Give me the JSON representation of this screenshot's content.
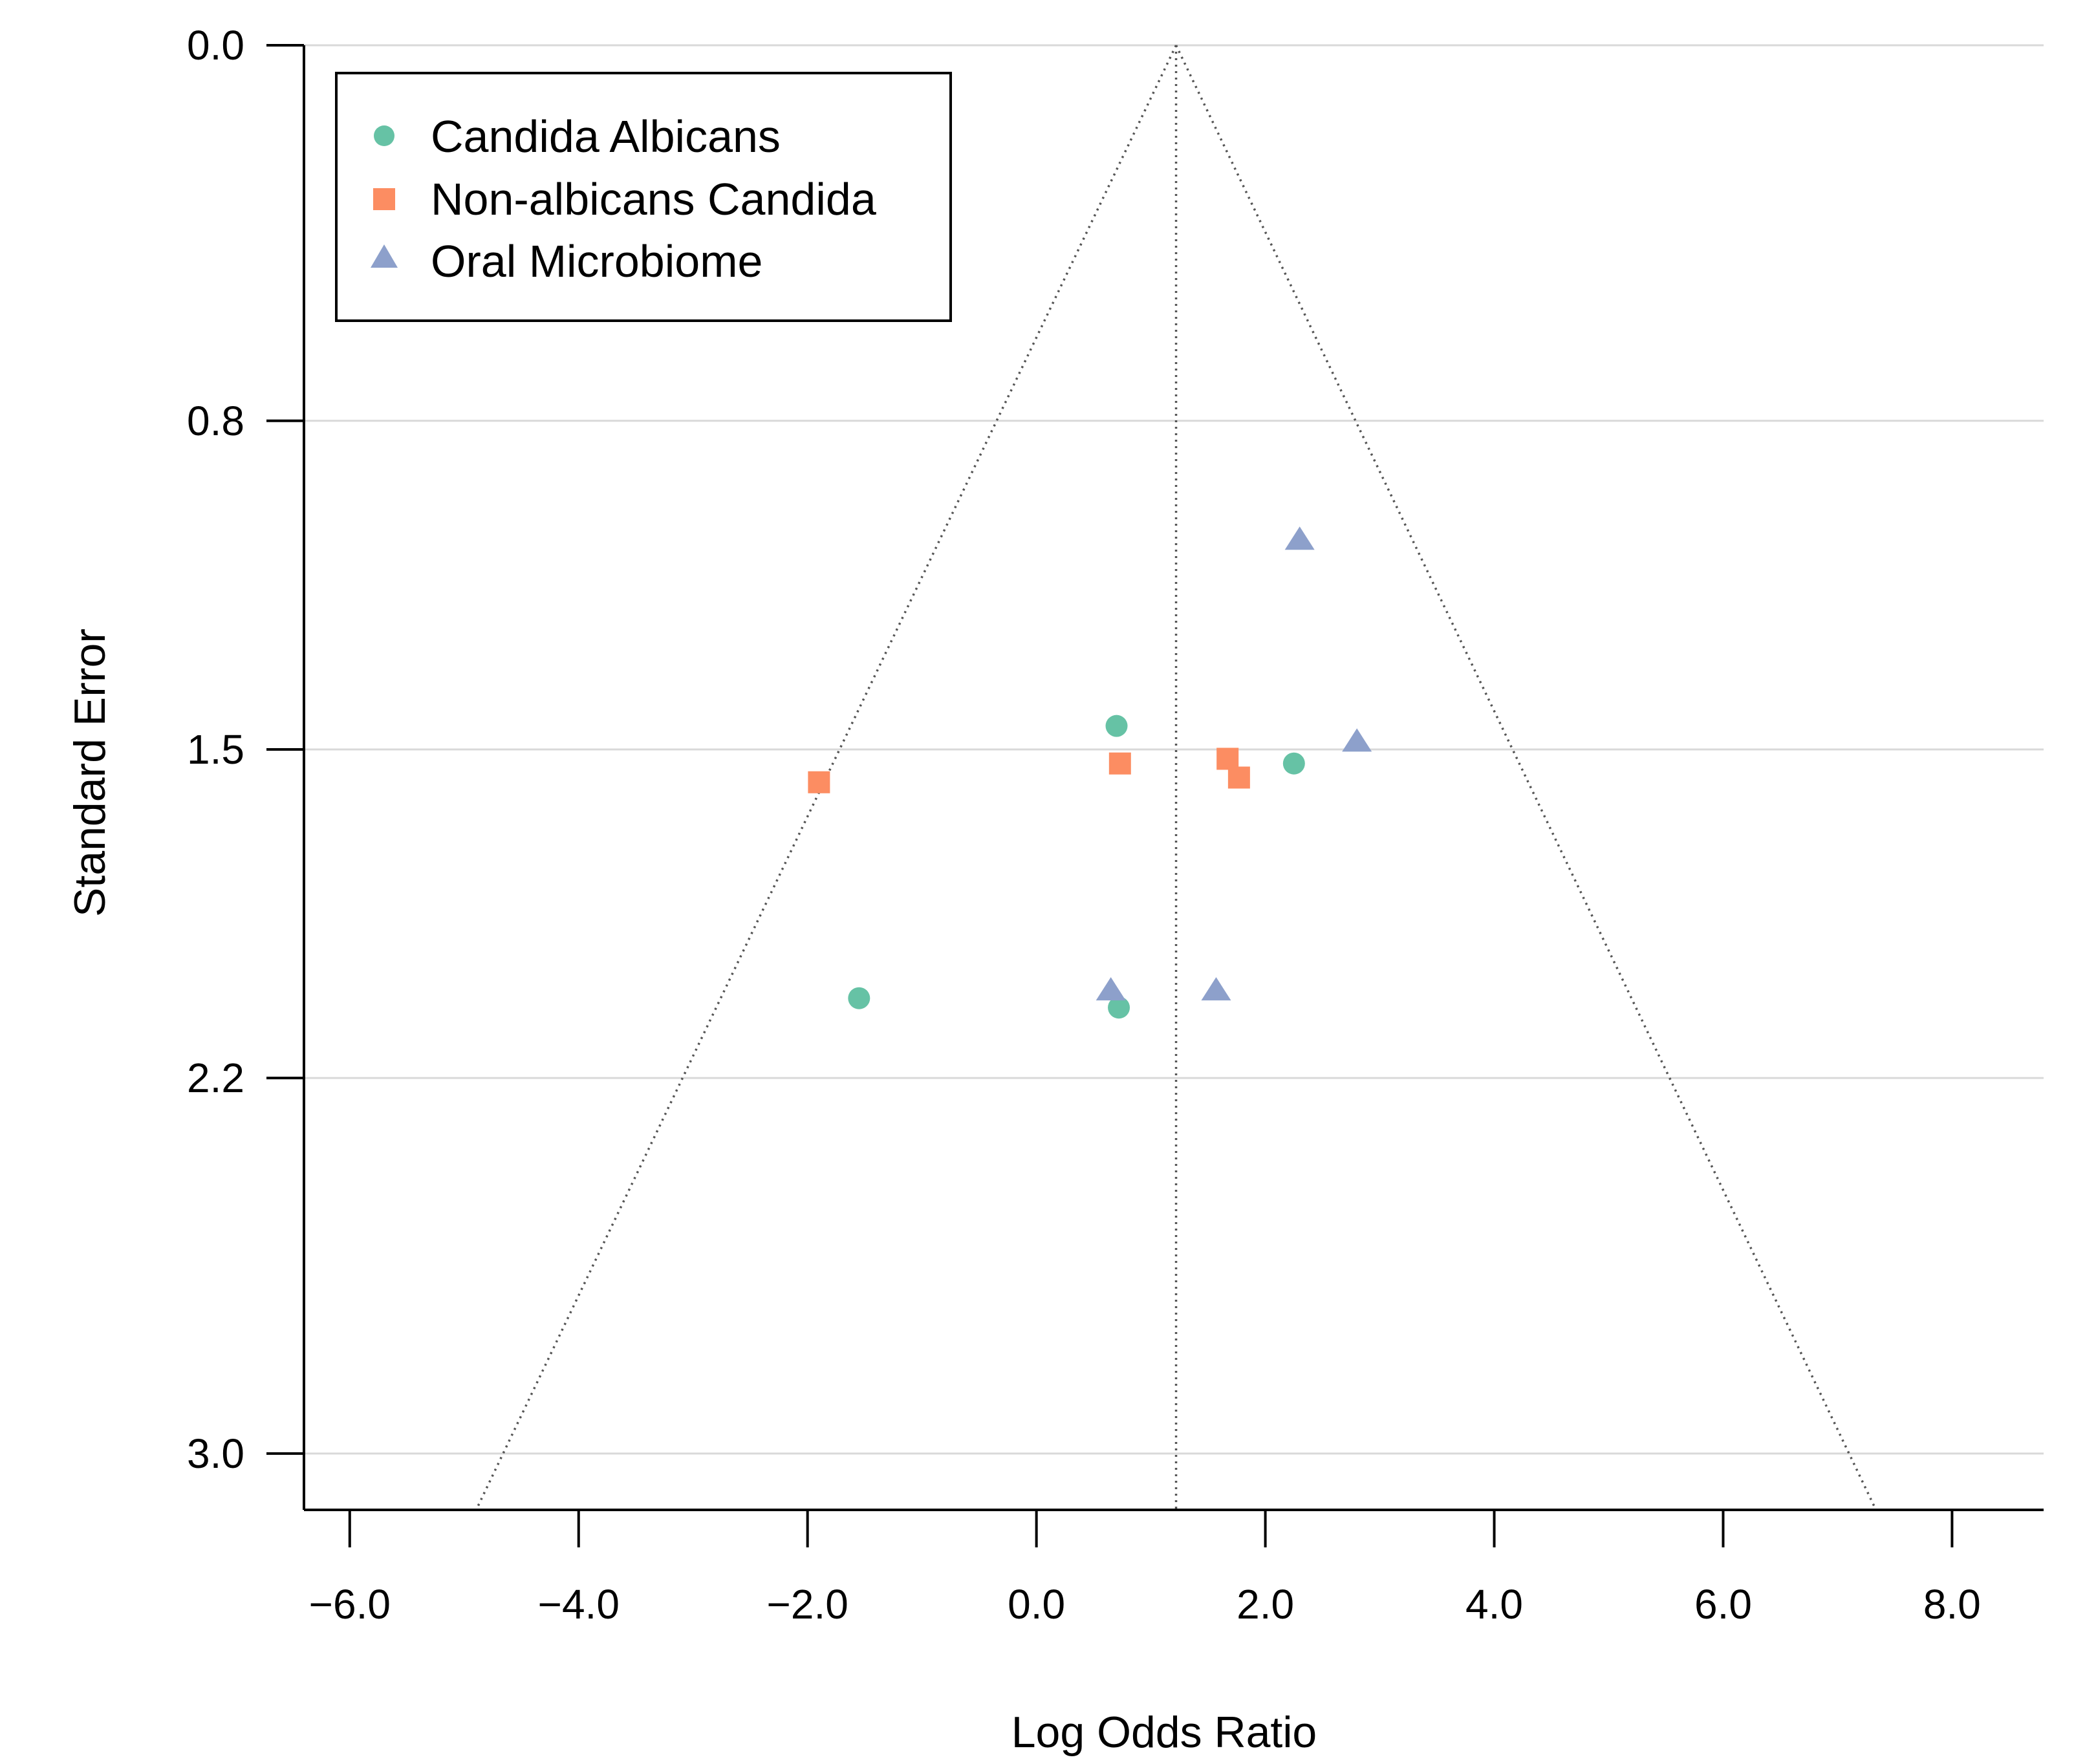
{
  "chart_data": {
    "type": "scatter",
    "subtype": "funnel-plot",
    "title": "",
    "xlabel": "Log Odds Ratio",
    "ylabel": "Standard Error",
    "xlim": [
      -6.4,
      8.8
    ],
    "ylim": [
      0,
      3.12
    ],
    "y_reversed": true,
    "x_ticks": [
      -6.0,
      -4.0,
      -2.0,
      0.0,
      2.0,
      4.0,
      6.0,
      8.0
    ],
    "x_tick_labels": [
      "−6.0",
      "−4.0",
      "−2.0",
      "0.0",
      "2.0",
      "4.0",
      "6.0",
      "8.0"
    ],
    "y_ticks": [
      0.0,
      0.8,
      1.5,
      2.2,
      3.0
    ],
    "y_tick_labels": [
      "0.0",
      "0.8",
      "1.5",
      "2.2",
      "3.0"
    ],
    "grid": "horizontal",
    "funnel": {
      "center": 1.22,
      "z": 1.96,
      "line_style": "dotted"
    },
    "legend": {
      "position": "top-left",
      "entries": [
        {
          "label": "Candida Albicans",
          "marker": "circle",
          "color": "#66C2A5"
        },
        {
          "label": "Non-albicans Candida",
          "marker": "square",
          "color": "#FC8D62"
        },
        {
          "label": "Oral Microbiome",
          "marker": "triangle",
          "color": "#8DA0CB"
        }
      ]
    },
    "series": [
      {
        "name": "Candida Albicans",
        "marker": "circle",
        "color": "#66C2A5",
        "points": [
          {
            "x": 0.7,
            "y": 1.45
          },
          {
            "x": 2.25,
            "y": 1.53
          },
          {
            "x": -1.55,
            "y": 2.03
          },
          {
            "x": 0.72,
            "y": 2.05
          }
        ]
      },
      {
        "name": "Non-albicans Candida",
        "marker": "square",
        "color": "#FC8D62",
        "points": [
          {
            "x": -1.9,
            "y": 1.57
          },
          {
            "x": 0.73,
            "y": 1.53
          },
          {
            "x": 1.67,
            "y": 1.52
          },
          {
            "x": 1.77,
            "y": 1.56
          }
        ]
      },
      {
        "name": "Oral Microbiome",
        "marker": "triangle",
        "color": "#8DA0CB",
        "points": [
          {
            "x": 2.3,
            "y": 1.05
          },
          {
            "x": 2.8,
            "y": 1.48
          },
          {
            "x": 0.65,
            "y": 2.01
          },
          {
            "x": 1.57,
            "y": 2.01
          }
        ]
      }
    ]
  }
}
